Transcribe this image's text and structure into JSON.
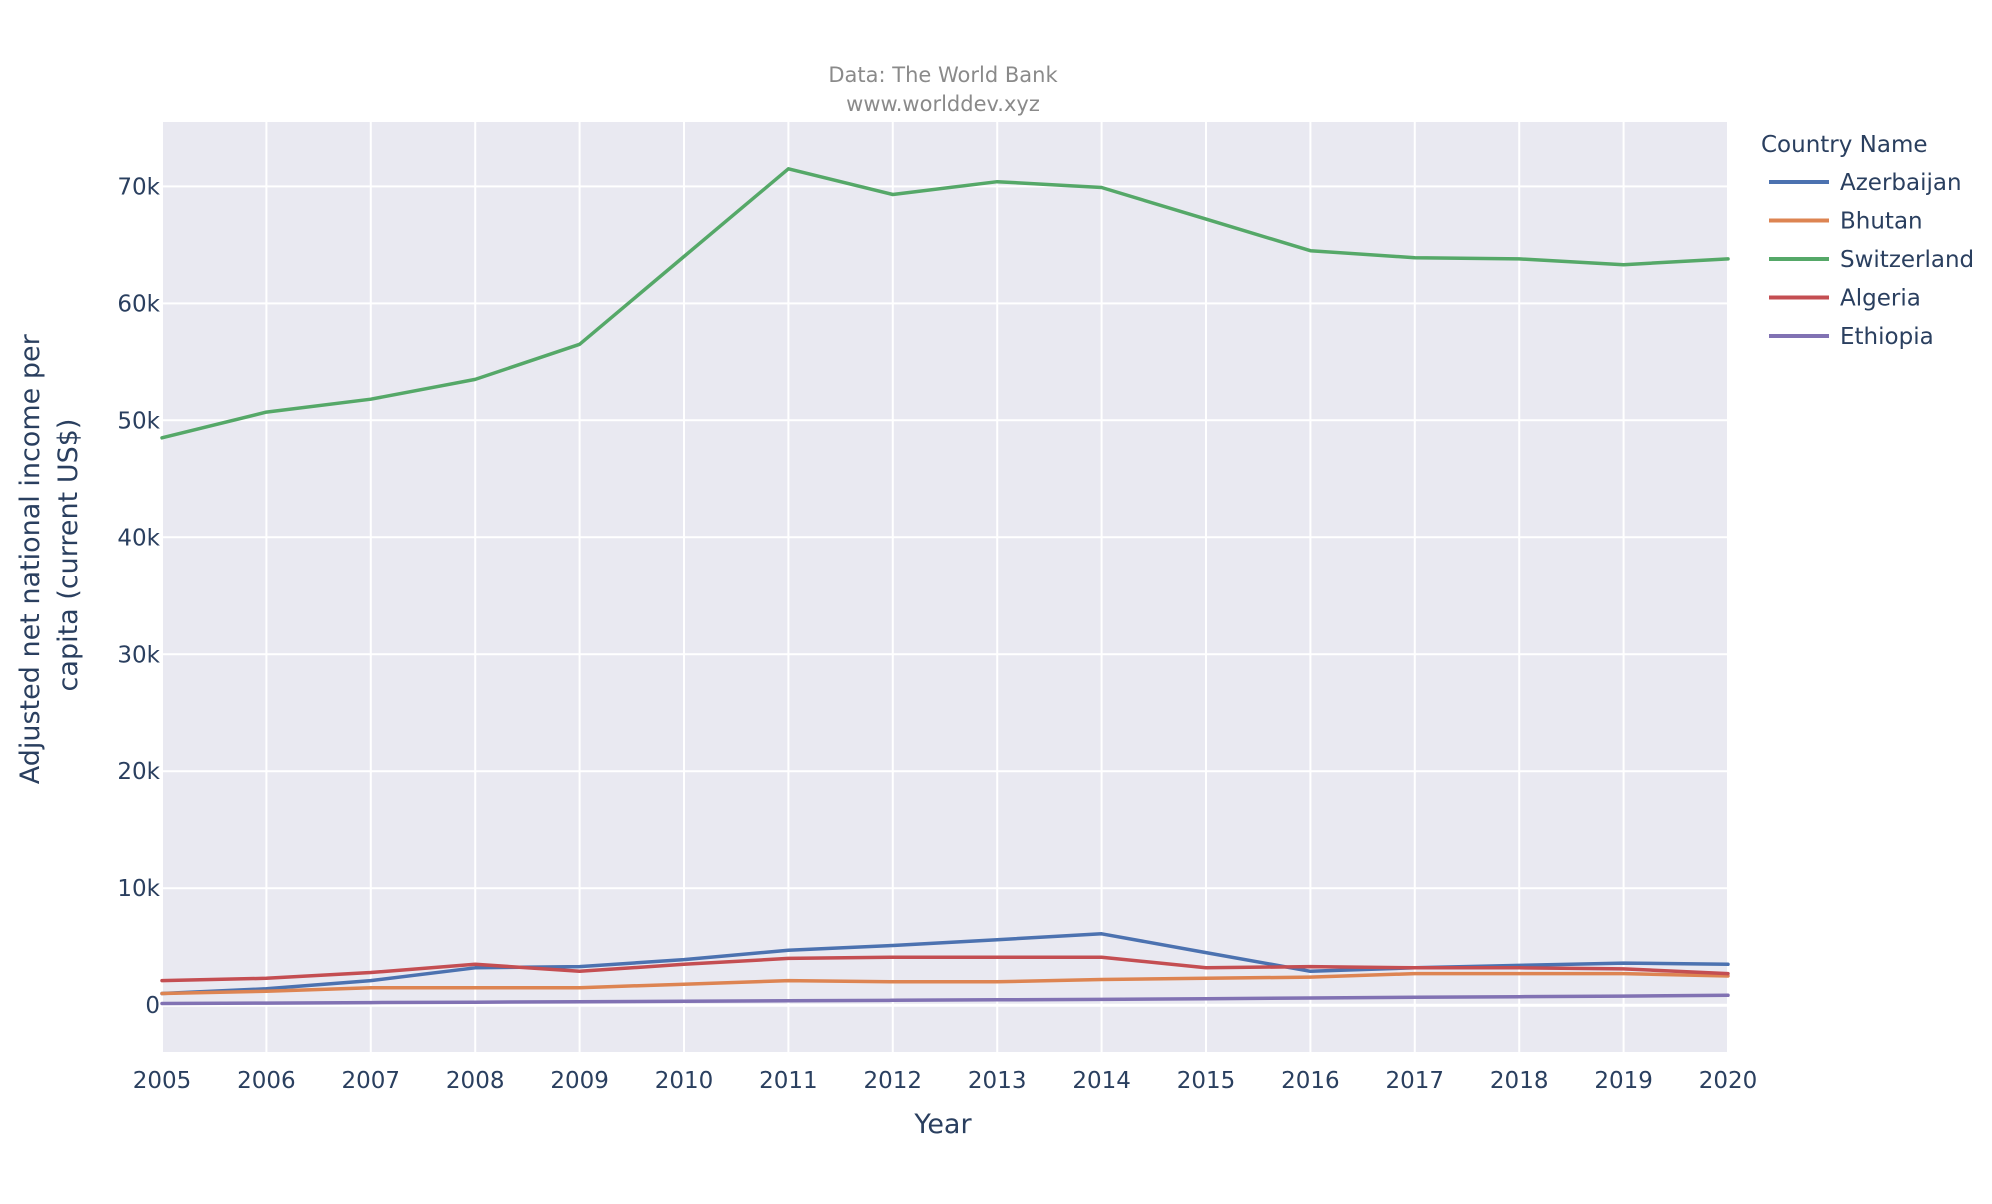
{
  "header": {
    "line1": "Data: The World Bank",
    "line2": "www.worlddev.xyz"
  },
  "legend": {
    "title": "Country Name"
  },
  "chart_data": {
    "type": "line",
    "xlabel": "Year",
    "ylabel": "Adjusted net national income per capita (current US$)",
    "ylabel_lines": [
      "Adjusted net national income per",
      "capita (current US$)"
    ],
    "xlim": [
      2005,
      2020
    ],
    "ylim": [
      -4000,
      75500
    ],
    "x_ticks": [
      2005,
      2006,
      2007,
      2008,
      2009,
      2010,
      2011,
      2012,
      2013,
      2014,
      2015,
      2016,
      2017,
      2018,
      2019,
      2020
    ],
    "y_ticks": [
      0,
      10000,
      20000,
      30000,
      40000,
      50000,
      60000,
      70000
    ],
    "y_tick_labels": [
      "0",
      "10k",
      "20k",
      "30k",
      "40k",
      "50k",
      "60k",
      "70k"
    ],
    "grid": true,
    "legend_position": "top-right",
    "x": [
      2005,
      2006,
      2007,
      2008,
      2009,
      2010,
      2011,
      2012,
      2013,
      2014,
      2015,
      2016,
      2017,
      2018,
      2019,
      2020
    ],
    "series": [
      {
        "name": "Azerbaijan",
        "color": "#4c72b0",
        "values": [
          1000,
          1400,
          2100,
          3200,
          3300,
          3900,
          4700,
          5100,
          5600,
          6100,
          4500,
          2900,
          3200,
          3400,
          3600,
          3500
        ]
      },
      {
        "name": "Bhutan",
        "color": "#dd8452",
        "values": [
          1000,
          1200,
          1500,
          1500,
          1500,
          1800,
          2100,
          2000,
          2000,
          2200,
          2300,
          2400,
          2700,
          2700,
          2700,
          2500
        ]
      },
      {
        "name": "Switzerland",
        "color": "#55a868",
        "values": [
          48500,
          50700,
          51800,
          53500,
          56500,
          64000,
          71500,
          69300,
          70400,
          69900,
          67200,
          64500,
          63900,
          63800,
          63300,
          63800
        ]
      },
      {
        "name": "Algeria",
        "color": "#c44e52",
        "values": [
          2100,
          2300,
          2800,
          3500,
          2900,
          3500,
          4000,
          4100,
          4100,
          4100,
          3200,
          3300,
          3200,
          3200,
          3100,
          2700
        ]
      },
      {
        "name": "Ethiopia",
        "color": "#8172b3",
        "values": [
          150,
          180,
          220,
          260,
          300,
          330,
          380,
          420,
          460,
          500,
          550,
          620,
          680,
          730,
          780,
          850
        ]
      }
    ]
  }
}
